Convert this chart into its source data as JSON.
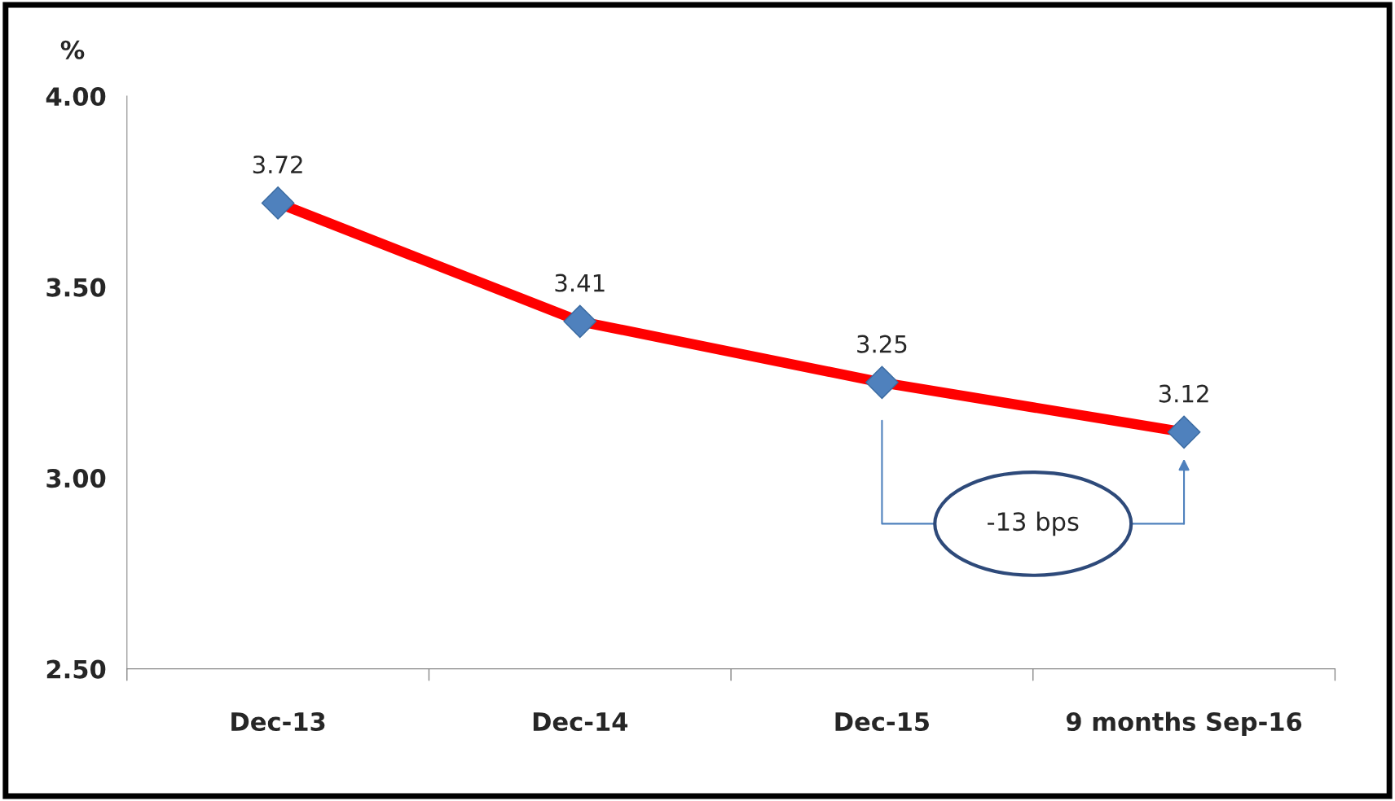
{
  "chart_data": {
    "type": "line",
    "ylabel": "%",
    "categories": [
      "Dec-13",
      "Dec-14",
      "Dec-15",
      "9 months Sep-16"
    ],
    "series": [
      {
        "color": "#ff0000",
        "colors": [
          "#4f81bd",
          "#4f81bd",
          "#4f81bd",
          "#4f81bd"
        ],
        "values": [
          3.72,
          3.41,
          3.25,
          3.12
        ]
      }
    ],
    "ylim": [
      2.5,
      4.0
    ],
    "yticks": [
      {
        "value": 2.5,
        "label": "2.50"
      },
      {
        "value": 3.0,
        "label": "3.00"
      },
      {
        "value": 3.5,
        "label": "3.50"
      },
      {
        "value": 4.0,
        "label": "4.00"
      }
    ],
    "data_labels": true,
    "marker": "diamond",
    "line_style": "solid",
    "grid": false,
    "legend": false,
    "annotations": [
      "-13 bps"
    ]
  }
}
